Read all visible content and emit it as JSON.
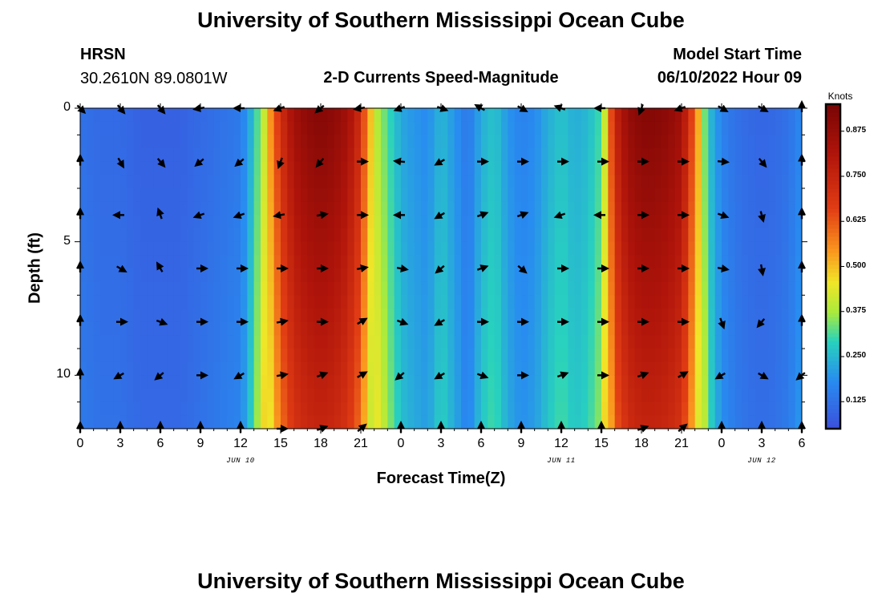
{
  "page": {
    "title": "University of Southern Mississippi Ocean Cube",
    "footer_title": "University of Southern Mississippi Ocean Cube"
  },
  "header": {
    "station": "HRSN",
    "coords": "30.2610N  89.0801W",
    "subtitle": "2-D Currents Speed-Magnitude",
    "model_label": "Model Start Time",
    "model_time": "06/10/2022 Hour 09"
  },
  "chart_data": {
    "type": "heatmap",
    "title": "2-D Currents Speed-Magnitude",
    "xlabel": "Forecast Time(Z)",
    "ylabel": "Depth (ft)",
    "x_range_hours": [
      0,
      54
    ],
    "y_range_ft": [
      0,
      12
    ],
    "x_ticks": [
      {
        "hour": 0,
        "label": "0"
      },
      {
        "hour": 3,
        "label": "3"
      },
      {
        "hour": 6,
        "label": "6"
      },
      {
        "hour": 9,
        "label": "9"
      },
      {
        "hour": 12,
        "label": "12"
      },
      {
        "hour": 15,
        "label": "15"
      },
      {
        "hour": 18,
        "label": "18"
      },
      {
        "hour": 21,
        "label": "21"
      },
      {
        "hour": 24,
        "label": "0"
      },
      {
        "hour": 27,
        "label": "3"
      },
      {
        "hour": 30,
        "label": "6"
      },
      {
        "hour": 33,
        "label": "9"
      },
      {
        "hour": 36,
        "label": "12"
      },
      {
        "hour": 39,
        "label": "15"
      },
      {
        "hour": 42,
        "label": "18"
      },
      {
        "hour": 45,
        "label": "21"
      },
      {
        "hour": 48,
        "label": "0"
      },
      {
        "hour": 51,
        "label": "3"
      },
      {
        "hour": 54,
        "label": "6"
      }
    ],
    "y_ticks": [
      {
        "depth": 0,
        "label": "0"
      },
      {
        "depth": 5,
        "label": "5"
      },
      {
        "depth": 10,
        "label": "10"
      }
    ],
    "date_labels": [
      {
        "hour": 12,
        "label": "JUN 10"
      },
      {
        "hour": 36,
        "label": "JUN 11"
      },
      {
        "hour": 51,
        "label": "JUN 12"
      }
    ],
    "colorbar": {
      "unit": "Knots",
      "range": [
        0.05,
        0.95
      ],
      "ticks": [
        0.125,
        0.25,
        0.375,
        0.5,
        0.625,
        0.75,
        0.875
      ],
      "tick_labels": [
        "0.125",
        "0.250",
        "0.375",
        "0.500",
        "0.625",
        "0.750",
        "0.875"
      ]
    },
    "speed_profile": {
      "hours": [
        0,
        1.5,
        3,
        4.5,
        6,
        7.5,
        9,
        10.5,
        12,
        13,
        14,
        15,
        16,
        17,
        18,
        19,
        20,
        21,
        21.5,
        22,
        23,
        24,
        25,
        26,
        27,
        28,
        29,
        30,
        31,
        32,
        33,
        34,
        35,
        36,
        37,
        38,
        39,
        39.5,
        40,
        41,
        42,
        43,
        44,
        45,
        46,
        47,
        48,
        49,
        50,
        51,
        52,
        53,
        54
      ],
      "knots": [
        0.14,
        0.12,
        0.12,
        0.1,
        0.1,
        0.1,
        0.12,
        0.14,
        0.16,
        0.3,
        0.5,
        0.72,
        0.85,
        0.9,
        0.92,
        0.9,
        0.85,
        0.72,
        0.55,
        0.45,
        0.35,
        0.25,
        0.22,
        0.2,
        0.28,
        0.22,
        0.15,
        0.26,
        0.3,
        0.22,
        0.18,
        0.2,
        0.26,
        0.3,
        0.26,
        0.28,
        0.35,
        0.55,
        0.75,
        0.88,
        0.92,
        0.92,
        0.9,
        0.85,
        0.6,
        0.3,
        0.18,
        0.14,
        0.12,
        0.11,
        0.12,
        0.14,
        0.2
      ]
    },
    "vectors": {
      "hours": [
        0,
        3,
        6,
        9,
        12,
        15,
        18,
        21,
        24,
        27,
        30,
        33,
        36,
        39,
        42,
        45,
        48,
        51,
        54
      ],
      "depths_ft": [
        0,
        2,
        4,
        6,
        8,
        10,
        12
      ],
      "direction_deg": [
        [
          135,
          140,
          140,
          260,
          270,
          250,
          230,
          260,
          250,
          110,
          300,
          120,
          290,
          270,
          200,
          250,
          120,
          120,
          0
        ],
        [
          0,
          150,
          140,
          230,
          230,
          200,
          220,
          90,
          275,
          240,
          90,
          90,
          90,
          90,
          90,
          90,
          95,
          140,
          0
        ],
        [
          0,
          270,
          340,
          250,
          250,
          260,
          80,
          90,
          270,
          240,
          70,
          70,
          250,
          270,
          90,
          90,
          110,
          165,
          0
        ],
        [
          0,
          120,
          330,
          90,
          90,
          90,
          90,
          80,
          100,
          230,
          70,
          130,
          90,
          90,
          90,
          90,
          100,
          170,
          0
        ],
        [
          0,
          90,
          110,
          90,
          90,
          80,
          90,
          60,
          110,
          240,
          90,
          90,
          90,
          90,
          90,
          90,
          160,
          220,
          0
        ],
        [
          0,
          240,
          230,
          90,
          240,
          80,
          70,
          60,
          230,
          240,
          110,
          90,
          70,
          90,
          70,
          60,
          240,
          120,
          230
        ],
        [
          0,
          0,
          0,
          0,
          0,
          90,
          70,
          50,
          0,
          0,
          0,
          0,
          0,
          0,
          70,
          50,
          0,
          0,
          0
        ]
      ]
    }
  }
}
